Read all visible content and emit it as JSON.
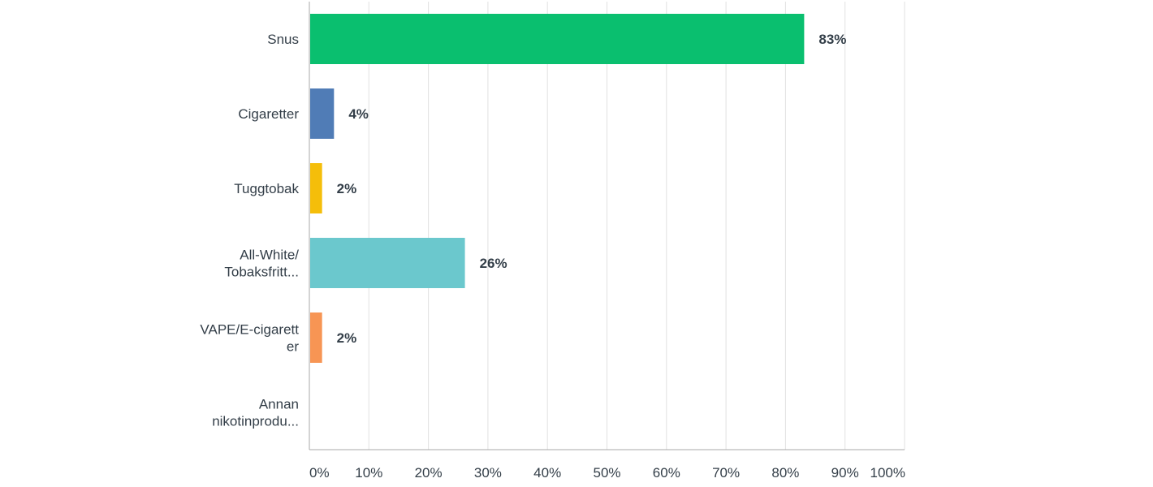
{
  "chart_data": {
    "type": "bar",
    "orientation": "horizontal",
    "categories": [
      [
        "Snus"
      ],
      [
        "Cigaretter"
      ],
      [
        "Tuggtobak"
      ],
      [
        "All-White/",
        "Tobaksfritt..."
      ],
      [
        "VAPE/E-cigarett",
        "er"
      ],
      [
        "Annan",
        "nikotinprodu..."
      ]
    ],
    "values": [
      83,
      4,
      2,
      26,
      2,
      0
    ],
    "value_labels": [
      "83%",
      "4%",
      "2%",
      "26%",
      "2%",
      ""
    ],
    "colors": [
      "#0abf6f",
      "#507cb6",
      "#f5be0a",
      "#6bc8cd",
      "#f79554",
      "#cccccc"
    ],
    "xlim": [
      0,
      100
    ],
    "xticks": [
      0,
      10,
      20,
      30,
      40,
      50,
      60,
      70,
      80,
      90,
      100
    ],
    "xtick_labels": [
      "0%",
      "10%",
      "20%",
      "30%",
      "40%",
      "50%",
      "60%",
      "70%",
      "80%",
      "90%",
      "100%"
    ],
    "grid": "vertical",
    "gridline_color": "#e1e1e1",
    "axis_color": "#a8a8a8",
    "title": "",
    "xlabel": "",
    "ylabel": ""
  }
}
